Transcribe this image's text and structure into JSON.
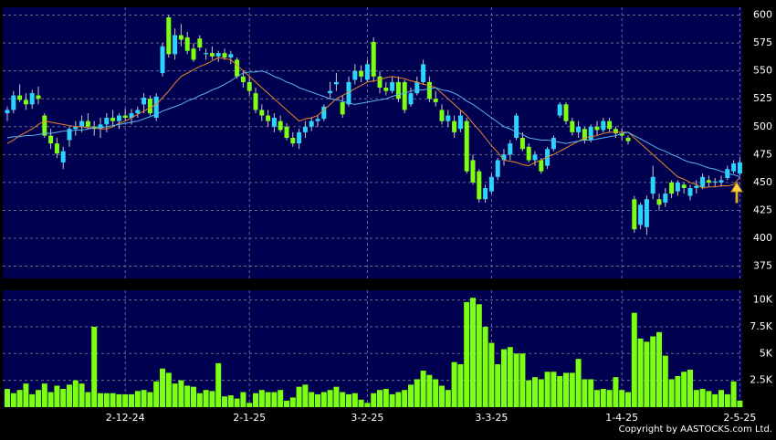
{
  "chart_data": {
    "type": "candlestick",
    "footer": "Copyright by AASTOCKS.com Ltd.",
    "up_color": "#2ad4ff",
    "down_color": "#7cff10",
    "volume_color": "#7cff10",
    "grid": true,
    "categories": [
      null,
      null,
      null,
      null,
      null,
      null,
      null,
      null,
      null,
      null,
      null,
      null,
      null,
      null,
      null,
      null,
      null,
      null,
      null,
      "2-12-24",
      null,
      null,
      null,
      null,
      null,
      null,
      null,
      null,
      null,
      null,
      null,
      null,
      null,
      null,
      null,
      null,
      null,
      null,
      null,
      "2-1-25",
      null,
      null,
      null,
      null,
      null,
      null,
      null,
      null,
      null,
      null,
      null,
      null,
      null,
      null,
      null,
      null,
      null,
      null,
      "3-2-25",
      null,
      null,
      null,
      null,
      null,
      null,
      null,
      null,
      null,
      null,
      null,
      null,
      null,
      null,
      null,
      null,
      null,
      null,
      null,
      "3-3-25",
      null,
      null,
      null,
      null,
      null,
      null,
      null,
      null,
      null,
      null,
      null,
      null,
      null,
      null,
      null,
      null,
      null,
      null,
      null,
      null,
      "1-4-25",
      null,
      null,
      null,
      null,
      null,
      null,
      null,
      null,
      null,
      null,
      null,
      null,
      null,
      null,
      null,
      null,
      null,
      null,
      "2-5-25"
    ],
    "ohlc": [
      [
        512,
        518,
        505,
        515
      ],
      [
        515,
        532,
        512,
        528
      ],
      [
        528,
        538,
        522,
        524
      ],
      [
        524,
        530,
        515,
        520
      ],
      [
        520,
        533,
        516,
        530
      ],
      [
        528,
        536,
        520,
        525
      ],
      [
        510,
        512,
        490,
        492
      ],
      [
        492,
        498,
        480,
        485
      ],
      [
        485,
        490,
        472,
        476
      ],
      [
        468,
        482,
        462,
        478
      ],
      [
        488,
        500,
        482,
        498
      ],
      [
        498,
        505,
        492,
        500
      ],
      [
        500,
        510,
        495,
        505
      ],
      [
        505,
        512,
        498,
        500
      ],
      [
        500,
        505,
        492,
        498
      ],
      [
        498,
        508,
        490,
        502
      ],
      [
        502,
        512,
        495,
        508
      ],
      [
        508,
        515,
        500,
        505
      ],
      [
        505,
        512,
        498,
        510
      ],
      [
        510,
        516,
        505,
        508
      ],
      [
        508,
        516,
        502,
        512
      ],
      [
        512,
        518,
        508,
        515
      ],
      [
        520,
        530,
        512,
        526
      ],
      [
        525,
        528,
        510,
        512
      ],
      [
        508,
        530,
        505,
        527
      ],
      [
        548,
        575,
        545,
        572
      ],
      [
        598,
        600,
        562,
        565
      ],
      [
        565,
        588,
        560,
        582
      ],
      [
        582,
        592,
        572,
        578
      ],
      [
        580,
        585,
        565,
        568
      ],
      [
        570,
        575,
        558,
        560
      ],
      [
        579,
        582,
        568,
        571
      ],
      [
        565,
        570,
        560,
        566
      ],
      [
        566,
        572,
        560,
        563
      ],
      [
        563,
        568,
        558,
        566
      ],
      [
        566,
        570,
        560,
        562
      ],
      [
        562,
        568,
        556,
        565
      ],
      [
        560,
        562,
        543,
        545
      ],
      [
        545,
        550,
        535,
        540
      ],
      [
        540,
        545,
        528,
        532
      ],
      [
        530,
        535,
        512,
        515
      ],
      [
        515,
        520,
        505,
        510
      ],
      [
        510,
        515,
        500,
        505
      ],
      [
        500,
        512,
        495,
        508
      ],
      [
        505,
        510,
        495,
        497
      ],
      [
        500,
        503,
        488,
        490
      ],
      [
        490,
        495,
        482,
        485
      ],
      [
        485,
        498,
        480,
        495
      ],
      [
        495,
        505,
        490,
        500
      ],
      [
        500,
        508,
        496,
        505
      ],
      [
        505,
        510,
        500,
        507
      ],
      [
        507,
        520,
        505,
        518
      ],
      [
        530,
        540,
        525,
        532
      ],
      [
        538,
        548,
        532,
        540
      ],
      [
        522,
        528,
        508,
        511
      ],
      [
        520,
        545,
        518,
        540
      ],
      [
        542,
        556,
        538,
        550
      ],
      [
        550,
        555,
        540,
        545
      ],
      [
        542,
        560,
        540,
        556
      ],
      [
        576,
        580,
        540,
        545
      ],
      [
        545,
        550,
        530,
        535
      ],
      [
        535,
        540,
        528,
        532
      ],
      [
        532,
        545,
        530,
        540
      ],
      [
        540,
        545,
        522,
        525
      ],
      [
        540,
        542,
        512,
        515
      ],
      [
        520,
        535,
        518,
        530
      ],
      [
        530,
        545,
        528,
        540
      ],
      [
        540,
        560,
        538,
        556
      ],
      [
        540,
        545,
        522,
        525
      ],
      [
        525,
        532,
        518,
        522
      ],
      [
        515,
        520,
        502,
        505
      ],
      [
        505,
        515,
        500,
        510
      ],
      [
        505,
        510,
        490,
        495
      ],
      [
        498,
        515,
        495,
        510
      ],
      [
        505,
        508,
        458,
        460
      ],
      [
        470,
        475,
        448,
        450
      ],
      [
        460,
        462,
        432,
        435
      ],
      [
        435,
        448,
        432,
        445
      ],
      [
        442,
        458,
        440,
        455
      ],
      [
        455,
        472,
        452,
        470
      ],
      [
        470,
        480,
        465,
        475
      ],
      [
        475,
        488,
        470,
        485
      ],
      [
        490,
        512,
        488,
        510
      ],
      [
        490,
        495,
        478,
        480
      ],
      [
        482,
        485,
        468,
        470
      ],
      [
        470,
        478,
        465,
        475
      ],
      [
        470,
        472,
        458,
        460
      ],
      [
        465,
        482,
        462,
        480
      ],
      [
        480,
        492,
        478,
        490
      ],
      [
        510,
        522,
        508,
        520
      ],
      [
        520,
        522,
        502,
        505
      ],
      [
        505,
        508,
        492,
        495
      ],
      [
        495,
        505,
        490,
        500
      ],
      [
        498,
        500,
        485,
        488
      ],
      [
        488,
        502,
        486,
        500
      ],
      [
        500,
        505,
        492,
        497
      ],
      [
        497,
        508,
        495,
        505
      ],
      [
        505,
        508,
        495,
        498
      ],
      [
        498,
        500,
        490,
        494
      ],
      [
        494,
        498,
        488,
        492
      ],
      [
        490,
        492,
        484,
        487
      ],
      [
        435,
        438,
        405,
        408
      ],
      [
        412,
        432,
        408,
        430
      ],
      [
        410,
        438,
        403,
        435
      ],
      [
        440,
        465,
        435,
        455
      ],
      [
        435,
        440,
        425,
        430
      ],
      [
        432,
        445,
        428,
        440
      ],
      [
        450,
        452,
        436,
        440
      ],
      [
        442,
        452,
        438,
        450
      ],
      [
        448,
        450,
        440,
        445
      ],
      [
        438,
        448,
        434,
        445
      ],
      [
        445,
        452,
        440,
        447
      ],
      [
        446,
        458,
        444,
        455
      ],
      [
        452,
        456,
        446,
        450
      ],
      [
        450,
        454,
        446,
        451
      ],
      [
        450,
        456,
        446,
        452
      ],
      [
        454,
        465,
        452,
        462
      ],
      [
        460,
        470,
        458,
        467
      ],
      [
        458,
        472,
        456,
        468
      ]
    ],
    "volume": [
      1700,
      1300,
      1600,
      2200,
      1200,
      1600,
      2200,
      1400,
      2000,
      1700,
      2100,
      2500,
      2200,
      1400,
      7500,
      1300,
      1300,
      1300,
      1200,
      1200,
      1200,
      1500,
      1600,
      1400,
      2400,
      3600,
      3200,
      2200,
      2500,
      2000,
      1900,
      1300,
      1600,
      1500,
      4100,
      1000,
      1100,
      800,
      1400,
      400,
      1300,
      1600,
      1400,
      1400,
      1600,
      600,
      900,
      1900,
      2100,
      1400,
      1200,
      1400,
      1600,
      1900,
      1400,
      1200,
      1300,
      700,
      400,
      1300,
      1600,
      1700,
      1200,
      1400,
      1600,
      2100,
      2600,
      3400,
      3000,
      2600,
      2000,
      1600,
      4200,
      4000,
      9800,
      10200,
      9600,
      7500,
      6000,
      4000,
      5400,
      5600,
      5000,
      5000,
      2500,
      2800,
      2600,
      3300,
      3300,
      2900,
      3200,
      3200,
      4500,
      2600,
      2600,
      1600,
      1700,
      1600,
      2800,
      1600,
      1400,
      8800,
      6400,
      6100,
      6600,
      7000,
      4800,
      2600,
      2900,
      3300,
      3500,
      1600,
      1700,
      1500,
      1200,
      1600,
      1200,
      2400,
      600
    ],
    "moving_averages": [
      {
        "color": "#e8852a",
        "values": [
          485,
          488,
          492,
          495,
          498,
          502,
          505,
          504,
          503,
          502,
          501,
          500,
          500,
          499,
          499,
          498,
          498,
          500,
          503,
          505,
          508,
          511,
          514,
          517,
          520,
          526,
          532,
          539,
          545,
          548,
          551,
          554,
          556,
          559,
          562,
          561,
          560,
          555,
          550,
          545,
          540,
          535,
          530,
          525,
          520,
          515,
          510,
          505,
          507,
          508,
          510,
          515,
          520,
          525,
          528,
          531,
          534,
          537,
          540,
          541,
          542,
          544,
          545,
          544,
          543,
          541,
          540,
          538,
          537,
          535,
          530,
          525,
          520,
          515,
          510,
          503,
          497,
          490,
          483,
          477,
          470,
          469,
          468,
          466,
          465,
          468,
          470,
          473,
          475,
          478,
          481,
          484,
          487,
          490,
          491,
          492,
          494,
          495,
          495,
          495,
          495,
          490,
          485,
          480,
          475,
          470,
          465,
          460,
          455,
          453,
          450,
          448,
          445,
          446,
          446,
          447,
          447,
          448,
          455
        ]
      },
      {
        "color": "#5ab4ec",
        "values": [
          490,
          491,
          491,
          492,
          492,
          493,
          494,
          494,
          495,
          496,
          496,
          497,
          497,
          498,
          499,
          499,
          500,
          501,
          502,
          503,
          504,
          505,
          507,
          509,
          511,
          514,
          516,
          518,
          520,
          523,
          525,
          528,
          530,
          533,
          535,
          538,
          541,
          545,
          548,
          549,
          549,
          550,
          548,
          545,
          543,
          540,
          538,
          535,
          533,
          531,
          529,
          527,
          525,
          524,
          523,
          521,
          520,
          521,
          522,
          523,
          524,
          525,
          527,
          529,
          530,
          532,
          533,
          533,
          534,
          535,
          533,
          532,
          530,
          527,
          523,
          520,
          516,
          512,
          508,
          504,
          500,
          498,
          495,
          493,
          490,
          489,
          488,
          488,
          487,
          486,
          485,
          486,
          487,
          488,
          488,
          489,
          490,
          491,
          492,
          494,
          495,
          492,
          489,
          486,
          483,
          480,
          478,
          475,
          473,
          470,
          468,
          467,
          465,
          463,
          462,
          460,
          458,
          457,
          455
        ]
      }
    ],
    "ylim": [
      364,
      607
    ],
    "yticks": [
      375,
      400,
      425,
      450,
      475,
      500,
      525,
      550,
      575,
      600
    ],
    "volume_ylim": [
      0,
      10900
    ],
    "volume_yticks": [
      {
        "value": 2500,
        "label": "2.5K"
      },
      {
        "value": 5000,
        "label": "5K"
      },
      {
        "value": 7500,
        "label": "7.5K"
      },
      {
        "value": 10000,
        "label": "10K"
      }
    ]
  }
}
